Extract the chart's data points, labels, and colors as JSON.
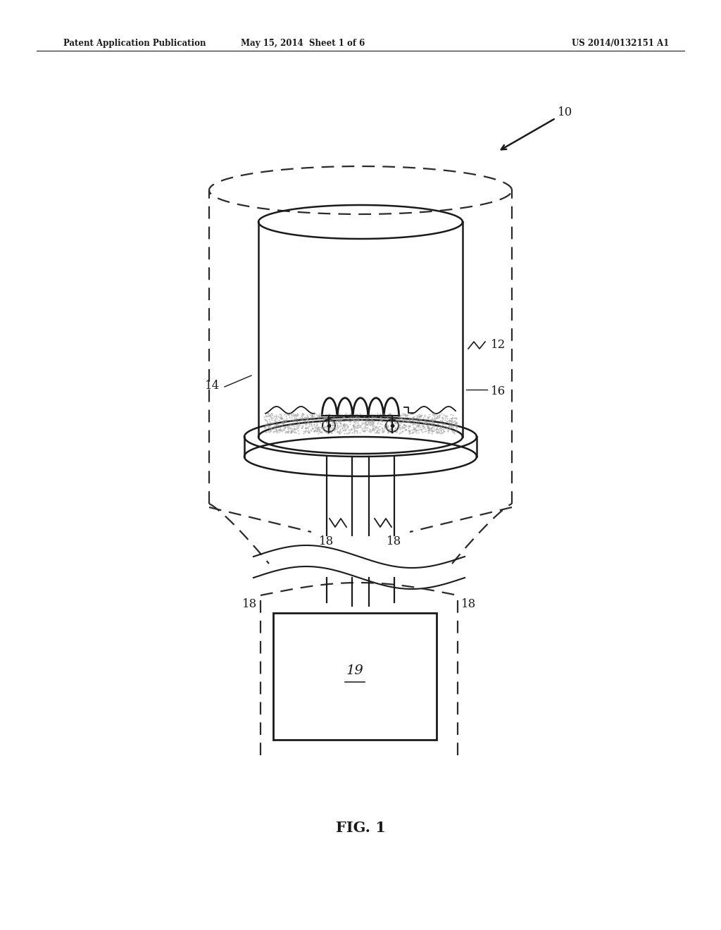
{
  "header_left": "Patent Application Publication",
  "header_mid": "May 15, 2014  Sheet 1 of 6",
  "header_right": "US 2014/0132151 A1",
  "fig_label": "FIG. 1",
  "bg": "#ffffff",
  "lc": "#1a1a1a",
  "dc": "#2a2a2a"
}
